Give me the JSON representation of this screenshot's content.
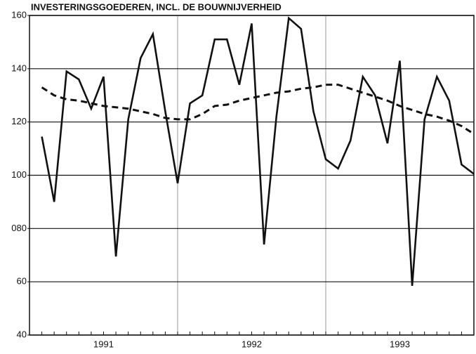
{
  "chart_data": {
    "type": "line",
    "title": "INVESTERINGSGOEDEREN, INCL. DE BOUWNIJVERHEID",
    "year_labels": [
      "1991",
      "1992",
      "1993"
    ],
    "series": [
      {
        "color": "#111111",
        "style": "solid",
        "values": [
          114.5,
          90,
          139,
          136,
          125,
          137,
          69.5,
          121,
          144,
          153,
          124,
          97,
          127,
          130,
          151,
          151,
          134,
          157,
          74,
          122,
          159,
          155,
          124,
          106,
          102.5,
          113,
          137,
          130,
          112,
          143,
          58.5,
          121,
          137,
          128,
          104,
          100.5
        ]
      },
      {
        "color": "#111111",
        "style": "dashed",
        "values": [
          133,
          130,
          128.5,
          128,
          127,
          126,
          125.5,
          125,
          124,
          123,
          121.5,
          121,
          121,
          123,
          126,
          126.5,
          128,
          129,
          130,
          131,
          131.5,
          132.5,
          133,
          134,
          134,
          132.5,
          131,
          129.5,
          128,
          126,
          124.5,
          123,
          122,
          120.5,
          118.5,
          115.5
        ]
      }
    ],
    "ylim": [
      40,
      160
    ],
    "yticks": [
      40,
      60,
      {
        "value": 80,
        "label": "080"
      },
      100,
      120,
      140,
      160
    ],
    "grid": true
  }
}
